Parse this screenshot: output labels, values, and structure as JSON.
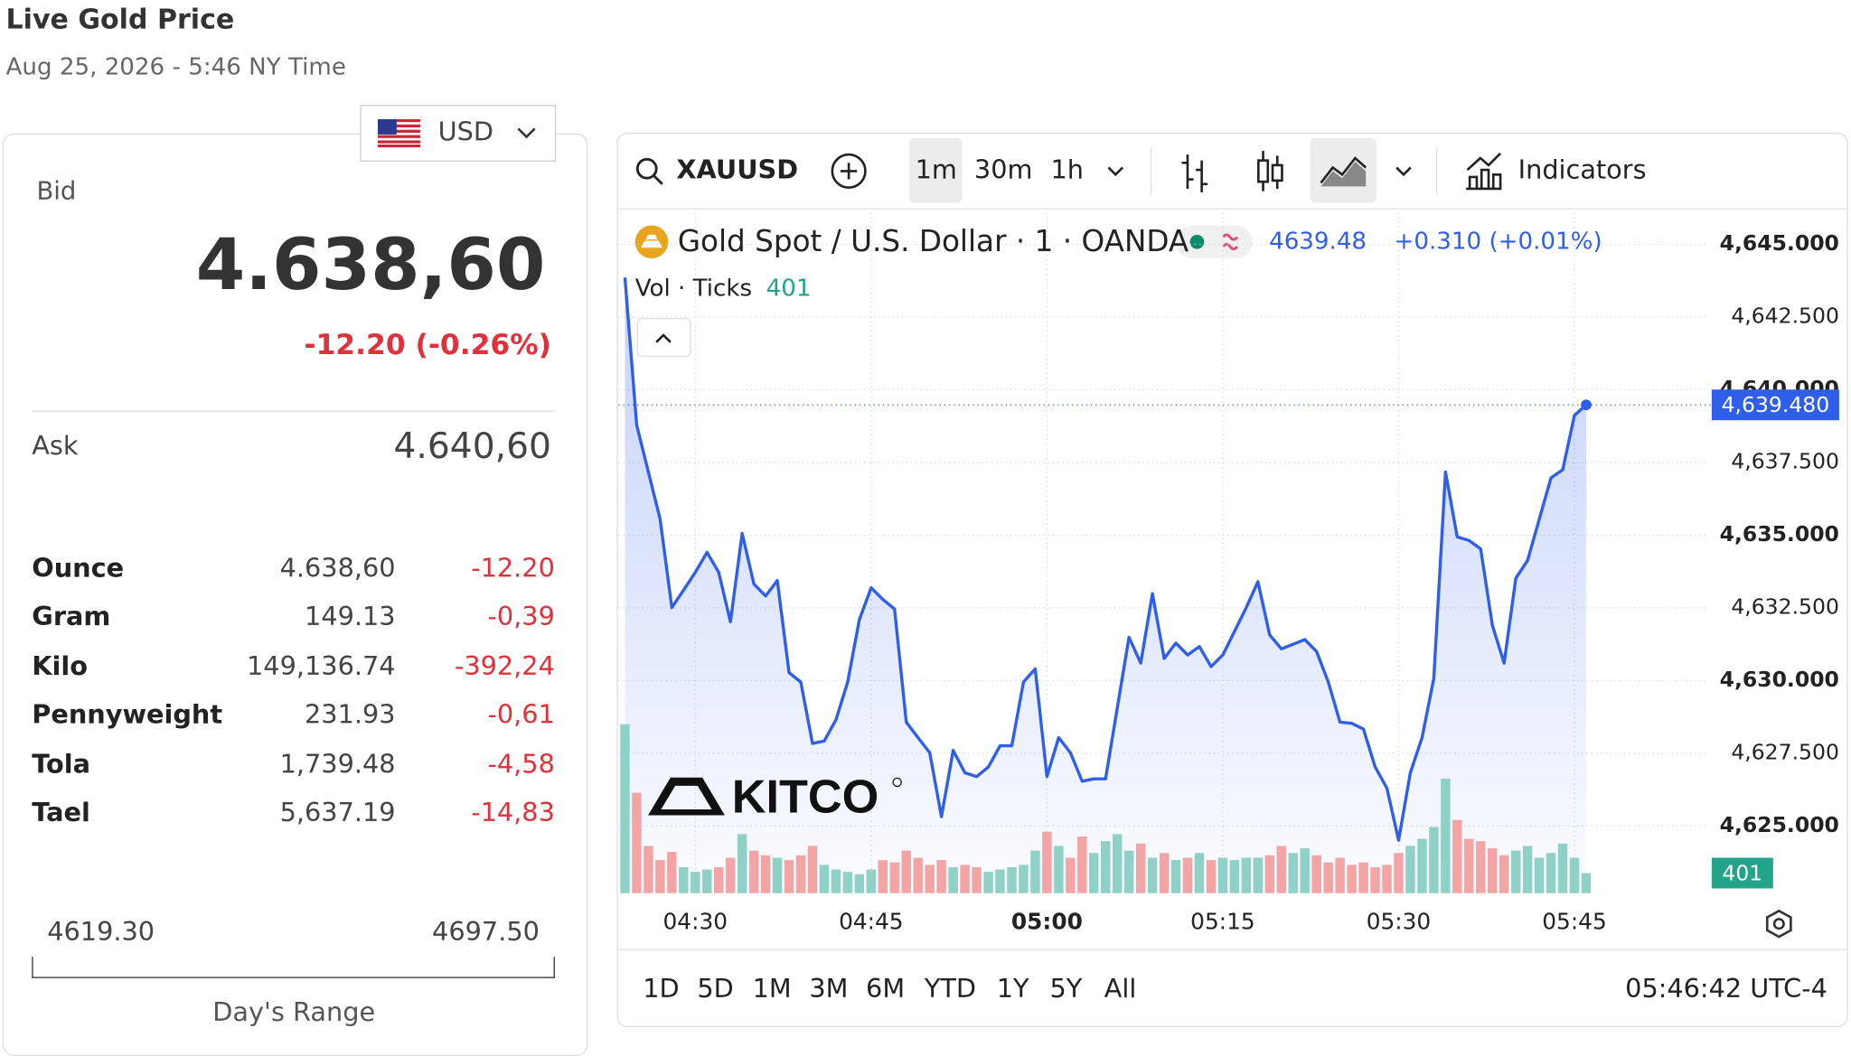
{
  "header": {
    "title": "Live Gold Price",
    "date": "Aug 25, 2026 - 5:46 NY Time",
    "currency": "USD"
  },
  "quote": {
    "bid_label": "Bid",
    "bid": "4.638,60",
    "change": "-12.20 (-0.26%)",
    "ask_label": "Ask",
    "ask": "4.640,60"
  },
  "table": {
    "rows": [
      [
        "Ounce",
        "4.638,60",
        "-12.20"
      ],
      [
        "Gram",
        "149.13",
        "-0,39"
      ],
      [
        "Kilo",
        "149,136.74",
        "-392,24"
      ],
      [
        "Pennyweight",
        "231.93",
        "-0,61"
      ],
      [
        "Tola",
        "1,739.48",
        "-4,58"
      ],
      [
        "Tael",
        "5,637.19",
        "-14,83"
      ]
    ]
  },
  "range": {
    "low": "4619.30",
    "high": "4697.50",
    "label": "Day's Range"
  },
  "toolbar": {
    "symbol": "XAUUSD",
    "intervals": [
      "1m",
      "30m",
      "1h"
    ],
    "indicators": "Indicators"
  },
  "footer": {
    "ranges": [
      "1D",
      "5D",
      "1M",
      "3M",
      "6M",
      "YTD",
      "1Y",
      "5Y",
      "All"
    ],
    "clock": "05:46:42 UTC-4"
  },
  "logo": "KITCO",
  "chart_data": {
    "type": "area",
    "categories": [
      null,
      null,
      null,
      null,
      null,
      null,
      "04:30",
      null,
      null,
      null,
      null,
      null,
      null,
      null,
      null,
      null,
      null,
      null,
      null,
      null,
      null,
      "04:45",
      null,
      null,
      null,
      null,
      null,
      null,
      null,
      null,
      null,
      null,
      null,
      null,
      null,
      null,
      "05:00",
      null,
      null,
      null,
      null,
      null,
      null,
      null,
      null,
      null,
      null,
      null,
      null,
      null,
      null,
      "05:15",
      null,
      null,
      null,
      null,
      null,
      null,
      null,
      null,
      null,
      null,
      null,
      null,
      null,
      null,
      "05:30",
      null,
      null,
      null,
      null,
      null,
      null,
      null,
      null,
      null,
      null,
      null,
      null,
      null,
      null,
      "05:45",
      null
    ],
    "series": [
      {
        "name": "Gold Spot / U.S. Dollar · 1 · OANDA",
        "color": "#2f5fe8",
        "values": [
          4643.86,
          4638.79,
          4637.17,
          4635.55,
          4632.51,
          4633.11,
          4633.72,
          4634.41,
          4633.72,
          4632.02,
          4635.06,
          4633.32,
          4632.91,
          4633.44,
          4630.27,
          4629.95,
          4627.84,
          4627.92,
          4628.65,
          4629.95,
          4632.1,
          4633.19,
          4632.79,
          4632.46,
          4628.57,
          4628.04,
          4627.52,
          4625.32,
          4627.6,
          4626.83,
          4626.7,
          4627.03,
          4627.76,
          4627.76,
          4629.95,
          4630.4,
          4626.7,
          4628.04,
          4627.52,
          4626.54,
          4626.62,
          4626.62,
          4629.06,
          4631.49,
          4630.6,
          4632.99,
          4630.76,
          4631.29,
          4630.88,
          4631.17,
          4630.48,
          4630.88,
          4631.69,
          4632.51,
          4633.4,
          4631.57,
          4631.09,
          4631.25,
          4631.41,
          4631.0,
          4629.95,
          4628.57,
          4628.53,
          4628.33,
          4627.03,
          4626.3,
          4624.51,
          4626.83,
          4628.04,
          4630.07,
          4637.17,
          4634.94,
          4634.82,
          4634.53,
          4631.9,
          4630.6,
          4633.52,
          4634.13,
          4635.55,
          4636.97,
          4637.25,
          4639.12,
          4639.48
        ]
      },
      {
        "name": "Vol · Ticks",
        "up_color": "#8fd1c6",
        "down_color": "#f3a5a6",
        "values": [
          3375,
          2006,
          944,
          661,
          826,
          519,
          425,
          472,
          519,
          708,
          1180,
          850,
          755,
          708,
          661,
          755,
          944,
          566,
          472,
          425,
          378,
          472,
          661,
          614,
          850,
          708,
          566,
          661,
          519,
          566,
          519,
          425,
          472,
          519,
          566,
          850,
          1227,
          944,
          708,
          1133,
          802,
          1038,
          1180,
          850,
          991,
          708,
          802,
          661,
          708,
          802,
          661,
          708,
          661,
          708,
          708,
          755,
          944,
          802,
          897,
          755,
          614,
          708,
          566,
          614,
          519,
          566,
          802,
          944,
          1086,
          1322,
          2289,
          1463,
          1086,
          1038,
          897,
          755,
          850,
          944,
          708,
          802,
          991,
          708,
          401
        ]
      }
    ],
    "last_label": "4,639.480",
    "change_label": "+0.310 (+0.01%)",
    "ylim": [
      4622.69,
      4646.1
    ],
    "yticks": [
      {
        "value": 4625,
        "label": "4,625.000"
      },
      {
        "value": 4627.5,
        "label": "4,627.500"
      },
      {
        "value": 4630,
        "label": "4,630.000"
      },
      {
        "value": 4632.5,
        "label": "4,632.500"
      },
      {
        "value": 4635,
        "label": "4,635.000"
      },
      {
        "value": 4637.5,
        "label": "4,637.500"
      },
      {
        "value": 4640,
        "label": "4,640.000"
      },
      {
        "value": 4642.5,
        "label": "4,642.500"
      },
      {
        "value": 4645,
        "label": "4,645.000"
      }
    ],
    "vol_ylim": [
      0,
      13600
    ],
    "grid": true
  }
}
